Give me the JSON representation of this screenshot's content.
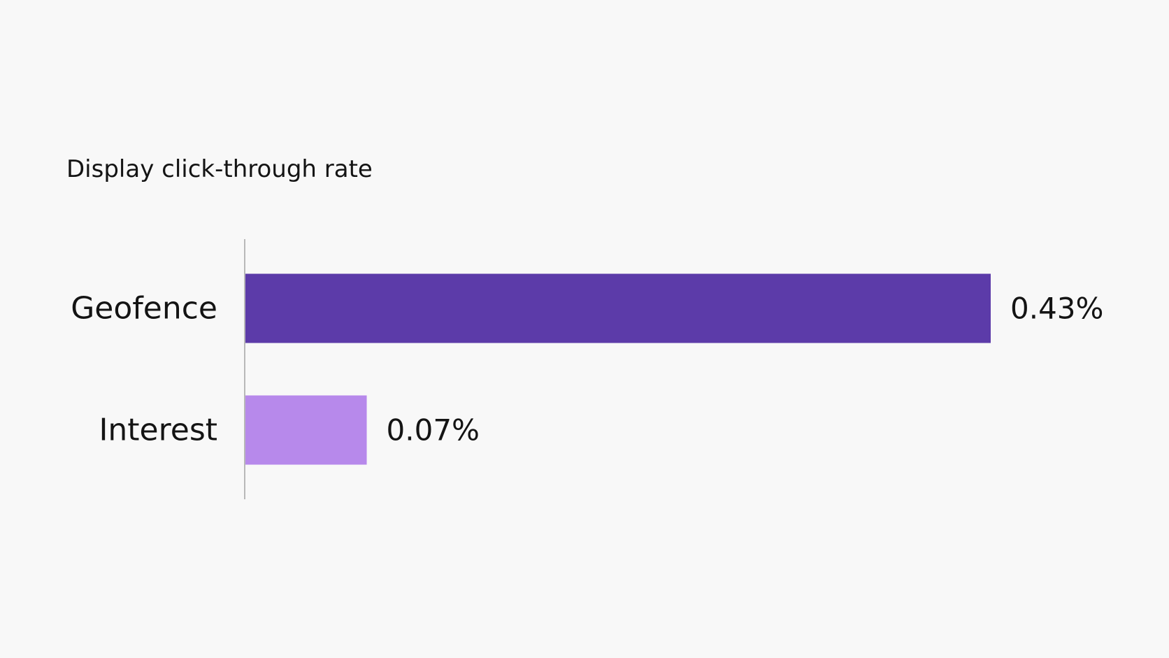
{
  "chart_data": {
    "type": "bar",
    "orientation": "horizontal",
    "title": "Display click-through rate",
    "xlabel": "",
    "ylabel": "",
    "categories": [
      "Geofence",
      "Interest"
    ],
    "values": [
      0.43,
      0.07
    ],
    "value_labels": [
      "0.43%",
      "0.07%"
    ],
    "unit": "%",
    "bar_colors": [
      "#5c3ba9",
      "#b789eb"
    ],
    "xlim": [
      0,
      0.43
    ],
    "grid": false,
    "legend": "none"
  },
  "colors": {
    "background": "#f8f8f8",
    "text": "#141414",
    "axis": "#b8b8b8"
  }
}
